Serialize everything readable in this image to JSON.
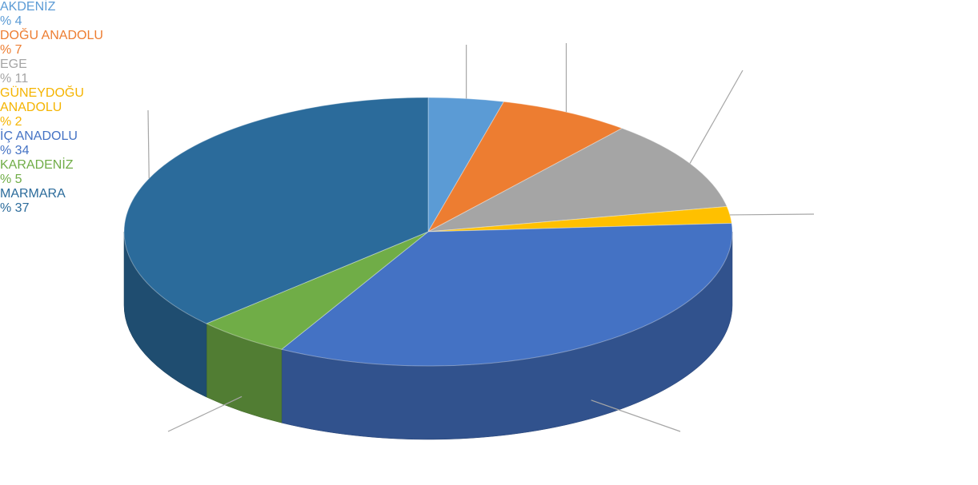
{
  "chart_data": {
    "type": "pie",
    "categories": [
      "AKDENİZ",
      "DOĞU ANADOLU",
      "EGE",
      "GÜNEYDOĞU ANADOLU",
      "İÇ ANADOLU",
      "KARADENİZ",
      "MARMARA"
    ],
    "values": [
      4,
      7,
      11,
      2,
      34,
      5,
      37
    ],
    "value_labels": [
      "% 4",
      "% 7",
      "% 11",
      "% 2",
      "% 34",
      "% 5",
      "% 37"
    ],
    "colors": [
      "#5b9bd5",
      "#ed7d31",
      "#a5a5a5",
      "#ffc000",
      "#4472c4",
      "#70ad47",
      "#2b6b9b"
    ]
  }
}
